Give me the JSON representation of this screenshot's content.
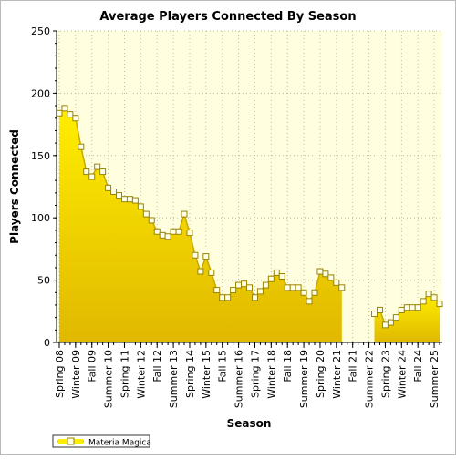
{
  "chart_data": {
    "type": "area",
    "title": "Average Players Connected By Season",
    "xlabel": "Season",
    "ylabel": "Players Connected",
    "ylim": [
      0,
      250
    ],
    "yticks": [
      0,
      50,
      100,
      150,
      200,
      250
    ],
    "grid": true,
    "legend_position": "bottom-left",
    "x_tick_labels": [
      "Spring 08",
      "Winter 09",
      "Fall 09",
      "Summer 10",
      "Spring 11",
      "Winter 12",
      "Fall 12",
      "Summer 13",
      "Spring 14",
      "Winter 15",
      "Fall 15",
      "Summer 16",
      "Spring 17",
      "Winter 18",
      "Fall 18",
      "Summer 19",
      "Spring 20",
      "Winter 21",
      "Fall 21",
      "Summer 22",
      "Spring 23",
      "Winter 24",
      "Fall 24",
      "Summer 25"
    ],
    "series": [
      {
        "name": "Materia Magica",
        "color": "#ffee00",
        "fill_top": "#ffee00",
        "fill_bottom": "#e0b800",
        "values": [
          184,
          188,
          183,
          180,
          157,
          137,
          133,
          141,
          137,
          124,
          121,
          118,
          115,
          115,
          114,
          109,
          103,
          98,
          89,
          86,
          85,
          89,
          89,
          103,
          88,
          70,
          57,
          69,
          56,
          42,
          36,
          36,
          42,
          46,
          47,
          44,
          36,
          41,
          46,
          51,
          56,
          53,
          44,
          44,
          44,
          40,
          33,
          40,
          57,
          55,
          52,
          48,
          44,
          null,
          null,
          null,
          null,
          null,
          23,
          26,
          14,
          16,
          20,
          26,
          28,
          28,
          28,
          33,
          39,
          36,
          31
        ]
      }
    ]
  },
  "legend": {
    "label": "Materia Magica"
  }
}
